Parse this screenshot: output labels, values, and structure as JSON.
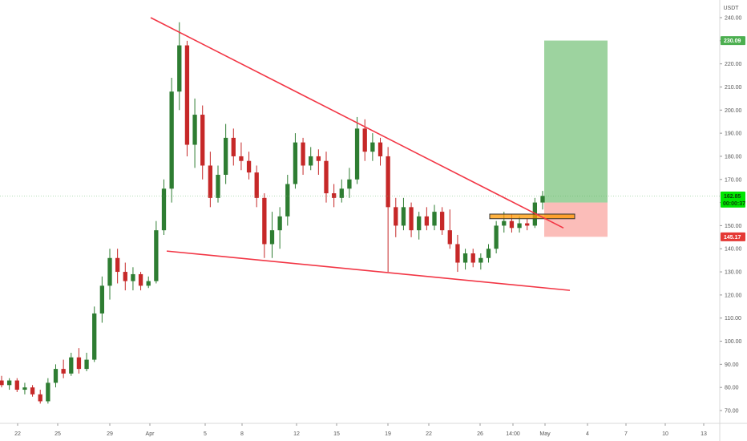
{
  "chart_data": {
    "type": "candlestick",
    "symbol_label": "USDT",
    "y_ticks": [
      70,
      80,
      90,
      100,
      110,
      120,
      130,
      140,
      150,
      160,
      170,
      180,
      190,
      200,
      210,
      220,
      230,
      240
    ],
    "ylim": [
      65,
      245
    ],
    "x_tick_labels": [
      "22",
      "25",
      "29",
      "Apr",
      "5",
      "8",
      "12",
      "15",
      "19",
      "22",
      "26",
      "14:00",
      "May",
      "4",
      "7",
      "10",
      "13"
    ],
    "price_badges": [
      {
        "name": "target-price-badge",
        "value": 230.09,
        "label": "230.09",
        "bg": "#4caf50",
        "fg": "#ffffff"
      },
      {
        "name": "current-price-badge",
        "value": 162.85,
        "label": "162.85",
        "sublabel": "00:00:37",
        "bg": "#00e600",
        "fg": "#0a3d0a"
      },
      {
        "name": "stop-price-badge",
        "value": 145.17,
        "label": "145.17",
        "bg": "#e53935",
        "fg": "#ffffff"
      }
    ],
    "current_price_line": 162.85,
    "trendlines": [
      {
        "name": "upper-resistance-trendline",
        "from": [
          0.0,
          240
        ],
        "to": [
          4.6,
          149
        ]
      },
      {
        "name": "lower-support-trendline",
        "from": [
          0.25,
          139
        ],
        "to": [
          4.6,
          122
        ]
      }
    ],
    "position": {
      "entry": 160,
      "target": 230.09,
      "stop": 145.17
    },
    "breakout_zone": {
      "low": 153,
      "high": 155
    },
    "series": [
      {
        "name": "",
        "points": [
          {
            "o": 83,
            "h": 85,
            "l": 80,
            "c": 81
          },
          {
            "o": 81,
            "h": 84,
            "l": 79,
            "c": 83
          },
          {
            "o": 83,
            "h": 84,
            "l": 78,
            "c": 79
          },
          {
            "o": 79,
            "h": 82,
            "l": 77,
            "c": 80
          },
          {
            "o": 80,
            "h": 81,
            "l": 76,
            "c": 77
          },
          {
            "o": 77,
            "h": 79,
            "l": 73,
            "c": 74
          },
          {
            "o": 74,
            "h": 84,
            "l": 73,
            "c": 82
          },
          {
            "o": 82,
            "h": 90,
            "l": 80,
            "c": 88
          },
          {
            "o": 88,
            "h": 92,
            "l": 84,
            "c": 86
          },
          {
            "o": 86,
            "h": 95,
            "l": 85,
            "c": 93
          },
          {
            "o": 93,
            "h": 97,
            "l": 86,
            "c": 88
          },
          {
            "o": 88,
            "h": 95,
            "l": 87,
            "c": 92
          },
          {
            "o": 92,
            "h": 115,
            "l": 91,
            "c": 112
          },
          {
            "o": 112,
            "h": 128,
            "l": 108,
            "c": 124
          },
          {
            "o": 124,
            "h": 140,
            "l": 118,
            "c": 136
          },
          {
            "o": 136,
            "h": 140,
            "l": 125,
            "c": 130
          },
          {
            "o": 130,
            "h": 134,
            "l": 122,
            "c": 126
          },
          {
            "o": 126,
            "h": 132,
            "l": 122,
            "c": 129
          },
          {
            "o": 129,
            "h": 130,
            "l": 122,
            "c": 124
          },
          {
            "o": 124,
            "h": 128,
            "l": 123,
            "c": 126
          },
          {
            "o": 126,
            "h": 152,
            "l": 125,
            "c": 148
          },
          {
            "o": 148,
            "h": 170,
            "l": 146,
            "c": 166
          },
          {
            "o": 166,
            "h": 214,
            "l": 160,
            "c": 208
          },
          {
            "o": 208,
            "h": 238,
            "l": 200,
            "c": 228
          },
          {
            "o": 228,
            "h": 230,
            "l": 180,
            "c": 185
          },
          {
            "o": 185,
            "h": 205,
            "l": 175,
            "c": 198
          },
          {
            "o": 198,
            "h": 202,
            "l": 170,
            "c": 176
          },
          {
            "o": 176,
            "h": 182,
            "l": 158,
            "c": 162
          },
          {
            "o": 162,
            "h": 176,
            "l": 160,
            "c": 172
          },
          {
            "o": 172,
            "h": 194,
            "l": 168,
            "c": 188
          },
          {
            "o": 188,
            "h": 192,
            "l": 176,
            "c": 180
          },
          {
            "o": 180,
            "h": 186,
            "l": 174,
            "c": 178
          },
          {
            "o": 178,
            "h": 182,
            "l": 170,
            "c": 173
          },
          {
            "o": 173,
            "h": 176,
            "l": 158,
            "c": 162
          },
          {
            "o": 162,
            "h": 164,
            "l": 136,
            "c": 142
          },
          {
            "o": 142,
            "h": 156,
            "l": 136,
            "c": 148
          },
          {
            "o": 148,
            "h": 158,
            "l": 140,
            "c": 154
          },
          {
            "o": 154,
            "h": 172,
            "l": 150,
            "c": 168
          },
          {
            "o": 168,
            "h": 190,
            "l": 166,
            "c": 186
          },
          {
            "o": 186,
            "h": 188,
            "l": 172,
            "c": 176
          },
          {
            "o": 176,
            "h": 184,
            "l": 174,
            "c": 180
          },
          {
            "o": 180,
            "h": 183,
            "l": 172,
            "c": 178
          },
          {
            "o": 178,
            "h": 182,
            "l": 160,
            "c": 164
          },
          {
            "o": 164,
            "h": 168,
            "l": 158,
            "c": 162
          },
          {
            "o": 162,
            "h": 170,
            "l": 160,
            "c": 166
          },
          {
            "o": 166,
            "h": 175,
            "l": 162,
            "c": 170
          },
          {
            "o": 170,
            "h": 197,
            "l": 168,
            "c": 192
          },
          {
            "o": 192,
            "h": 196,
            "l": 178,
            "c": 182
          },
          {
            "o": 182,
            "h": 190,
            "l": 178,
            "c": 186
          },
          {
            "o": 186,
            "h": 188,
            "l": 176,
            "c": 180
          },
          {
            "o": 180,
            "h": 184,
            "l": 130,
            "c": 158
          },
          {
            "o": 158,
            "h": 162,
            "l": 145,
            "c": 150
          },
          {
            "o": 150,
            "h": 162,
            "l": 148,
            "c": 158
          },
          {
            "o": 158,
            "h": 160,
            "l": 145,
            "c": 148
          },
          {
            "o": 148,
            "h": 156,
            "l": 144,
            "c": 154
          },
          {
            "o": 154,
            "h": 158,
            "l": 148,
            "c": 150
          },
          {
            "o": 150,
            "h": 159,
            "l": 148,
            "c": 156
          },
          {
            "o": 156,
            "h": 158,
            "l": 146,
            "c": 148
          },
          {
            "o": 148,
            "h": 157,
            "l": 140,
            "c": 142
          },
          {
            "o": 142,
            "h": 146,
            "l": 130,
            "c": 134
          },
          {
            "o": 134,
            "h": 140,
            "l": 131,
            "c": 138
          },
          {
            "o": 138,
            "h": 140,
            "l": 132,
            "c": 134
          },
          {
            "o": 134,
            "h": 138,
            "l": 131,
            "c": 136
          },
          {
            "o": 136,
            "h": 142,
            "l": 134,
            "c": 140
          },
          {
            "o": 140,
            "h": 152,
            "l": 138,
            "c": 150
          },
          {
            "o": 150,
            "h": 156,
            "l": 147,
            "c": 152
          },
          {
            "o": 152,
            "h": 155,
            "l": 147,
            "c": 149
          },
          {
            "o": 149,
            "h": 154,
            "l": 147,
            "c": 151
          },
          {
            "o": 151,
            "h": 153,
            "l": 148,
            "c": 150
          },
          {
            "o": 150,
            "h": 162,
            "l": 149,
            "c": 160
          },
          {
            "o": 160,
            "h": 165,
            "l": 157,
            "c": 162.85
          }
        ]
      }
    ]
  }
}
